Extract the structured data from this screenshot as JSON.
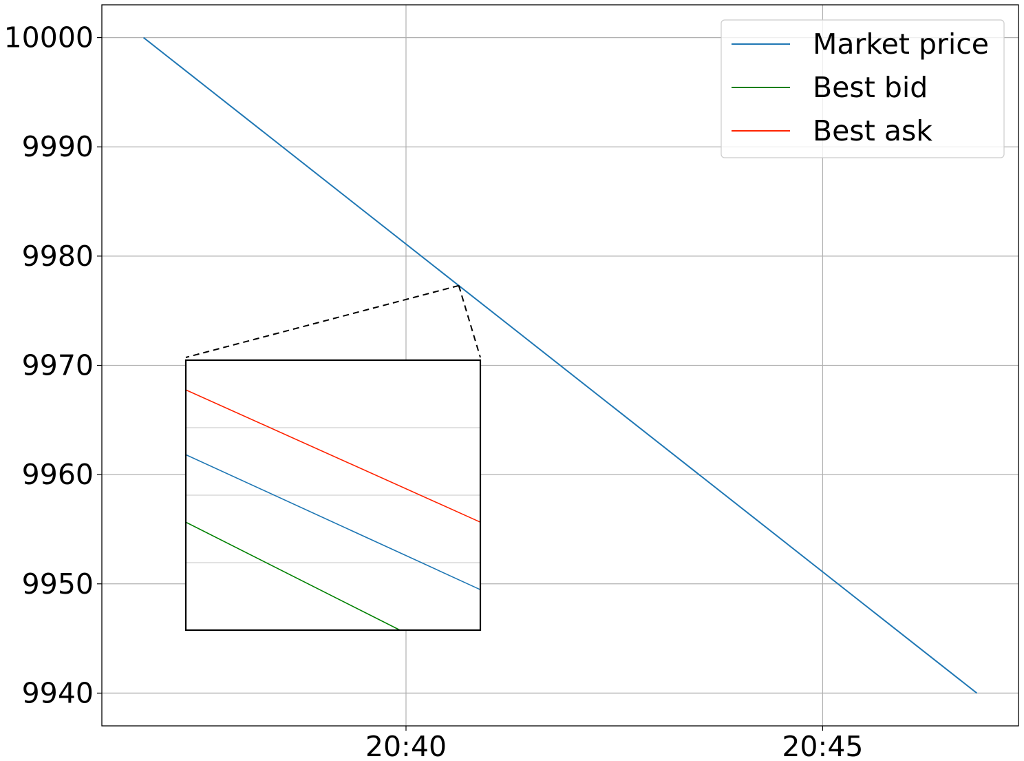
{
  "chart_data": {
    "type": "line",
    "title": "",
    "xlabel": "",
    "ylabel": "",
    "x_axis": {
      "kind": "time",
      "ticks": [
        {
          "time": "20:40",
          "label": "20:40"
        },
        {
          "time": "20:45",
          "label": "20:45"
        }
      ],
      "range": [
        "20:36:21",
        "20:47:21"
      ]
    },
    "y_axis": {
      "ticks": [
        9940,
        9950,
        9960,
        9970,
        9980,
        9990,
        10000
      ],
      "tick_labels": [
        "9940",
        "9950",
        "9960",
        "9970",
        "9980",
        "9990",
        "10000"
      ],
      "range": [
        9937,
        10003
      ]
    },
    "grid": true,
    "legend_position": "upper right",
    "series": [
      {
        "name": "Market price",
        "color": "#1f77b4",
        "points": [
          {
            "time": "20:36:51",
            "value": 10000
          },
          {
            "time": "20:46:51",
            "value": 9940
          }
        ]
      }
    ],
    "legend": [
      {
        "label": "Market price",
        "color": "#1f77b4"
      },
      {
        "label": "Best bid",
        "color": "#008000"
      },
      {
        "label": "Best ask",
        "color": "#ff2200"
      }
    ],
    "inset": {
      "zoom_on": "Market price near 20:40:38",
      "series": [
        {
          "name": "Best ask",
          "color": "#ff2200",
          "start": 0.89,
          "end": 0.4
        },
        {
          "name": "Market price",
          "color": "#1f77b4",
          "start": 0.65,
          "end": 0.15
        },
        {
          "name": "Best bid",
          "color": "#008000",
          "start": 0.4,
          "end": -0.15
        }
      ],
      "gridlines": [
        0.25,
        0.5,
        0.75
      ]
    }
  }
}
